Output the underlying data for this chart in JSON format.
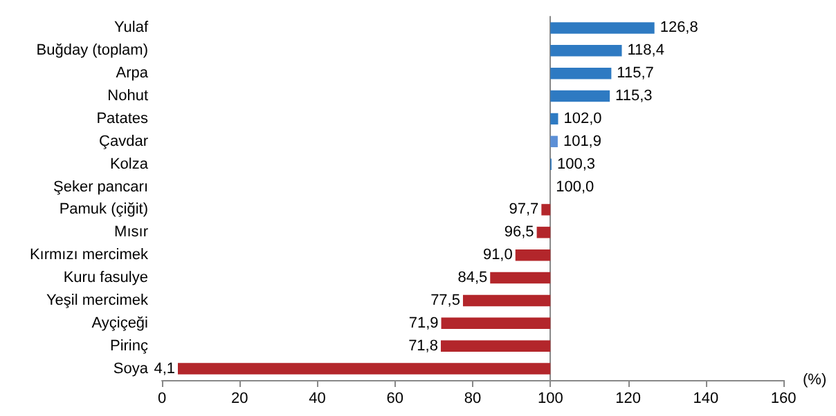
{
  "chart_data": {
    "type": "bar",
    "orientation": "horizontal",
    "xlabel": "(%)",
    "categories": [
      "Yulaf",
      "Buğday (toplam)",
      "Arpa",
      "Nohut",
      "Patates",
      "Çavdar",
      "Kolza",
      "Şeker pancarı",
      "Pamuk (çiğit)",
      "Mısır",
      "Kırmızı mercimek",
      "Kuru fasulye",
      "Yeşil mercimek",
      "Ayçiçeği",
      "Pirinç",
      "Soya"
    ],
    "base": [
      100,
      100,
      100,
      100,
      100,
      100,
      100,
      100,
      100,
      100,
      100,
      100,
      100,
      100,
      100,
      100
    ],
    "values": [
      26.8,
      18.4,
      15.7,
      15.3,
      2.0,
      1.9,
      0.3,
      0.0,
      -2.3,
      -3.5,
      -9.0,
      -15.5,
      -22.5,
      -28.1,
      -28.2,
      -95.9
    ],
    "value_labels": [
      "126,8",
      "118,4",
      "115,7",
      "115,3",
      "102,0",
      "101,9",
      "100,3",
      "100,0",
      "97,7",
      "96,5",
      "91,0",
      "84,5",
      "77,5",
      "71,9",
      "71,8",
      "4,1"
    ],
    "colors": [
      "#2e7ac2",
      "#2e7ac2",
      "#2e7ac2",
      "#2e7ac2",
      "#2e7ac2",
      "#5b8fd6",
      "#2e7ac2",
      "#2e7ac2",
      "#b3262b",
      "#b3262b",
      "#b3262b",
      "#b3262b",
      "#b3262b",
      "#b3262b",
      "#b3262b",
      "#b3262b"
    ],
    "xlim": [
      0,
      160
    ],
    "xticks": [
      0,
      20,
      40,
      60,
      80,
      100,
      120,
      140,
      160
    ]
  }
}
